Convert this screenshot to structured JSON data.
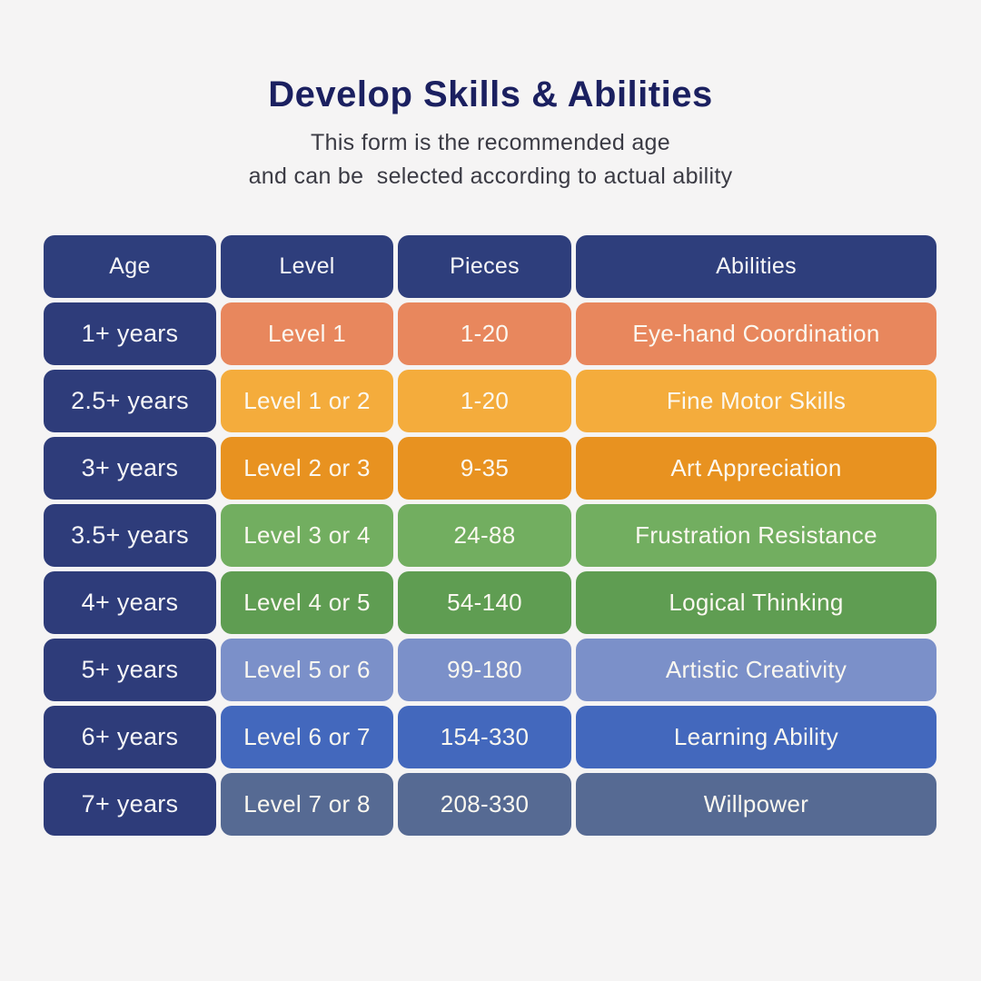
{
  "page": {
    "title": "Develop Skills & Abilities",
    "subtitle_line1": "This form is the recommended age",
    "subtitle_line2": "and can be  selected according to actual ability"
  },
  "colors": {
    "background": "#f5f4f4",
    "title_text": "#1b2060",
    "subtitle_text": "#3b3b44",
    "header_bg": "#2e3e7c",
    "age_cell_bg": "#2e3c7a",
    "header_text": "#f6f6f8",
    "age_text": "#f6f6f8",
    "cell_text": "#fbf8f0"
  },
  "chart_data": {
    "type": "table",
    "title": "Develop Skills & Abilities",
    "columns": [
      "Age",
      "Level",
      "Pieces",
      "Abilities"
    ],
    "rows": [
      {
        "age": "1+ years",
        "level": "Level 1",
        "pieces": "1-20",
        "ability": "Eye-hand Coordination",
        "color": "#e8875d"
      },
      {
        "age": "2.5+ years",
        "level": "Level 1 or 2",
        "pieces": "1-20",
        "ability": "Fine Motor Skills",
        "color": "#f4ac3c"
      },
      {
        "age": "3+ years",
        "level": "Level 2 or 3",
        "pieces": "9-35",
        "ability": "Art Appreciation",
        "color": "#e89220"
      },
      {
        "age": "3.5+ years",
        "level": "Level 3 or 4",
        "pieces": "24-88",
        "ability": "Frustration Resistance",
        "color": "#72ae60"
      },
      {
        "age": "4+ years",
        "level": "Level 4 or 5",
        "pieces": "54-140",
        "ability": "Logical Thinking",
        "color": "#5f9d52"
      },
      {
        "age": "5+ years",
        "level": "Level 5 or 6",
        "pieces": "99-180",
        "ability": "Artistic Creativity",
        "color": "#7b90c9"
      },
      {
        "age": "6+ years",
        "level": "Level 6 or 7",
        "pieces": "154-330",
        "ability": "Learning Ability",
        "color": "#4368bd"
      },
      {
        "age": "7+ years",
        "level": "Level 7 or 8",
        "pieces": "208-330",
        "ability": "Willpower",
        "color": "#566a93"
      }
    ]
  }
}
